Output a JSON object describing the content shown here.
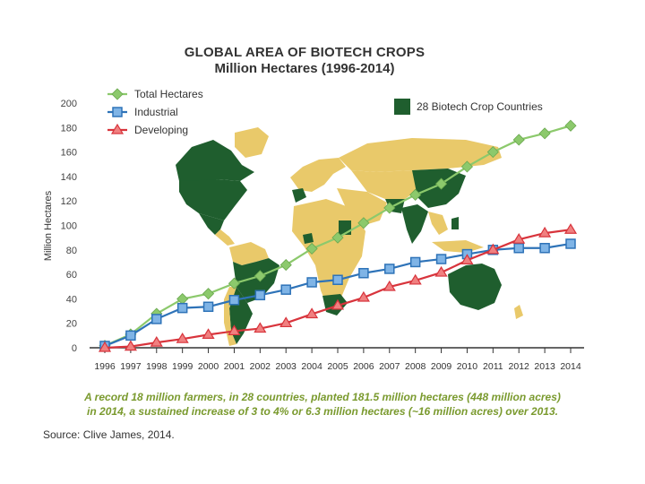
{
  "title": "GLOBAL AREA OF BIOTECH CROPS",
  "subtitle": "Million Hectares (1996-2014)",
  "note_line1": "A record 18 million farmers, in 28 countries, planted 181.5 million hectares (448 million acres)",
  "note_line2": "in 2014, a sustained increase of 3 to 4% or 6.3 million hectares (~16 million acres) over 2013.",
  "source": "Source: Clive James, 2014.",
  "map_legend": "28 Biotech Crop Countries",
  "colors": {
    "map_dark": "#1f5e2e",
    "map_light": "#e9c96a",
    "total": "#8cc96c",
    "industrial": "#2e73b8",
    "developing": "#d8343c"
  },
  "chart_data": {
    "type": "line",
    "ylabel": "Million Hectares",
    "xlabel": "",
    "ylim": [
      0,
      200
    ],
    "yticks": [
      0,
      20,
      40,
      60,
      80,
      100,
      120,
      140,
      160,
      180,
      200
    ],
    "x": [
      "1996",
      "1997",
      "1998",
      "1999",
      "2000",
      "2001",
      "2002",
      "2003",
      "2004",
      "2005",
      "2006",
      "2007",
      "2008",
      "2009",
      "2010",
      "2011",
      "2012",
      "2013",
      "2014"
    ],
    "legend_position": "top-left",
    "series": [
      {
        "name": "Total Hectares",
        "marker": "diamond",
        "values": [
          1.7,
          11,
          27.8,
          39.9,
          44.2,
          52.6,
          58.7,
          67.7,
          81,
          90,
          102,
          114.3,
          125,
          134,
          148,
          160,
          170,
          175.2,
          181.5
        ]
      },
      {
        "name": "Industrial",
        "marker": "square",
        "values": [
          1.5,
          10,
          23.5,
          32.5,
          33.5,
          39,
          43,
          47.5,
          53.5,
          55.5,
          61,
          64.5,
          70,
          72.5,
          76.5,
          80,
          81.5,
          81.5,
          85
        ]
      },
      {
        "name": "Developing",
        "marker": "triangle",
        "values": [
          0,
          1,
          4.3,
          7.2,
          10.7,
          13.6,
          15.7,
          20.2,
          27.5,
          34.5,
          41,
          49.8,
          55,
          61.5,
          71.5,
          80,
          88.5,
          93.7,
          96.5
        ]
      }
    ]
  }
}
